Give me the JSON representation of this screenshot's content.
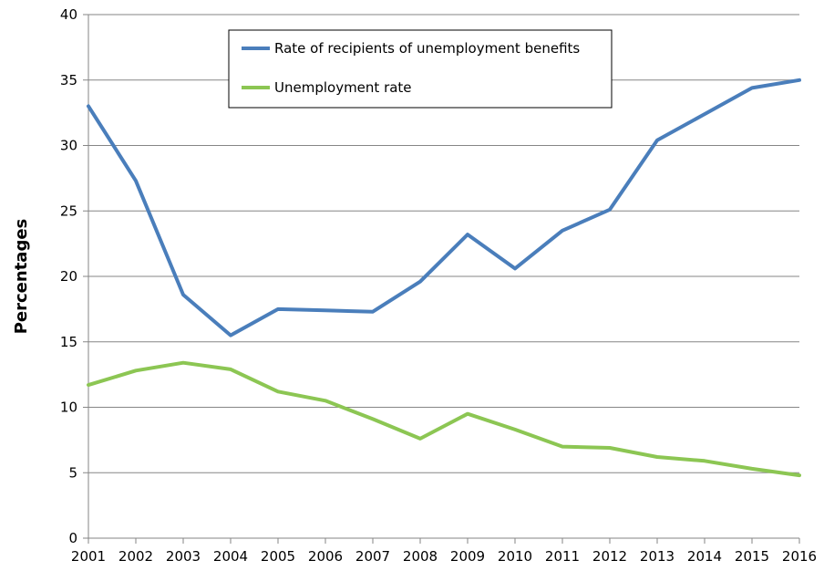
{
  "chart_data": {
    "type": "line",
    "ylabel": "Percentages",
    "xlabel": "",
    "ylim": [
      0,
      40
    ],
    "yticks": [
      0,
      5,
      10,
      15,
      20,
      25,
      30,
      35,
      40
    ],
    "grid": true,
    "legend_position": "top-center",
    "x": [
      "2001",
      "2002",
      "2003",
      "2004",
      "2005",
      "2006",
      "2007",
      "2008",
      "2009",
      "2010",
      "2011",
      "2012",
      "2013",
      "2014",
      "2015",
      "2016"
    ],
    "series": [
      {
        "name": "Rate of recipients of unemployment benefits",
        "color": "#4a7ebb",
        "values": [
          33.0,
          27.3,
          18.6,
          15.5,
          17.5,
          17.4,
          17.3,
          19.6,
          23.2,
          20.6,
          23.5,
          25.1,
          30.4,
          32.4,
          34.4,
          35.0
        ]
      },
      {
        "name": "Unemployment rate",
        "color": "#8cc653",
        "values": [
          11.7,
          12.8,
          13.4,
          12.9,
          11.2,
          10.5,
          9.1,
          7.6,
          9.5,
          8.3,
          7.0,
          6.9,
          6.2,
          5.9,
          5.3,
          4.8
        ]
      }
    ]
  }
}
